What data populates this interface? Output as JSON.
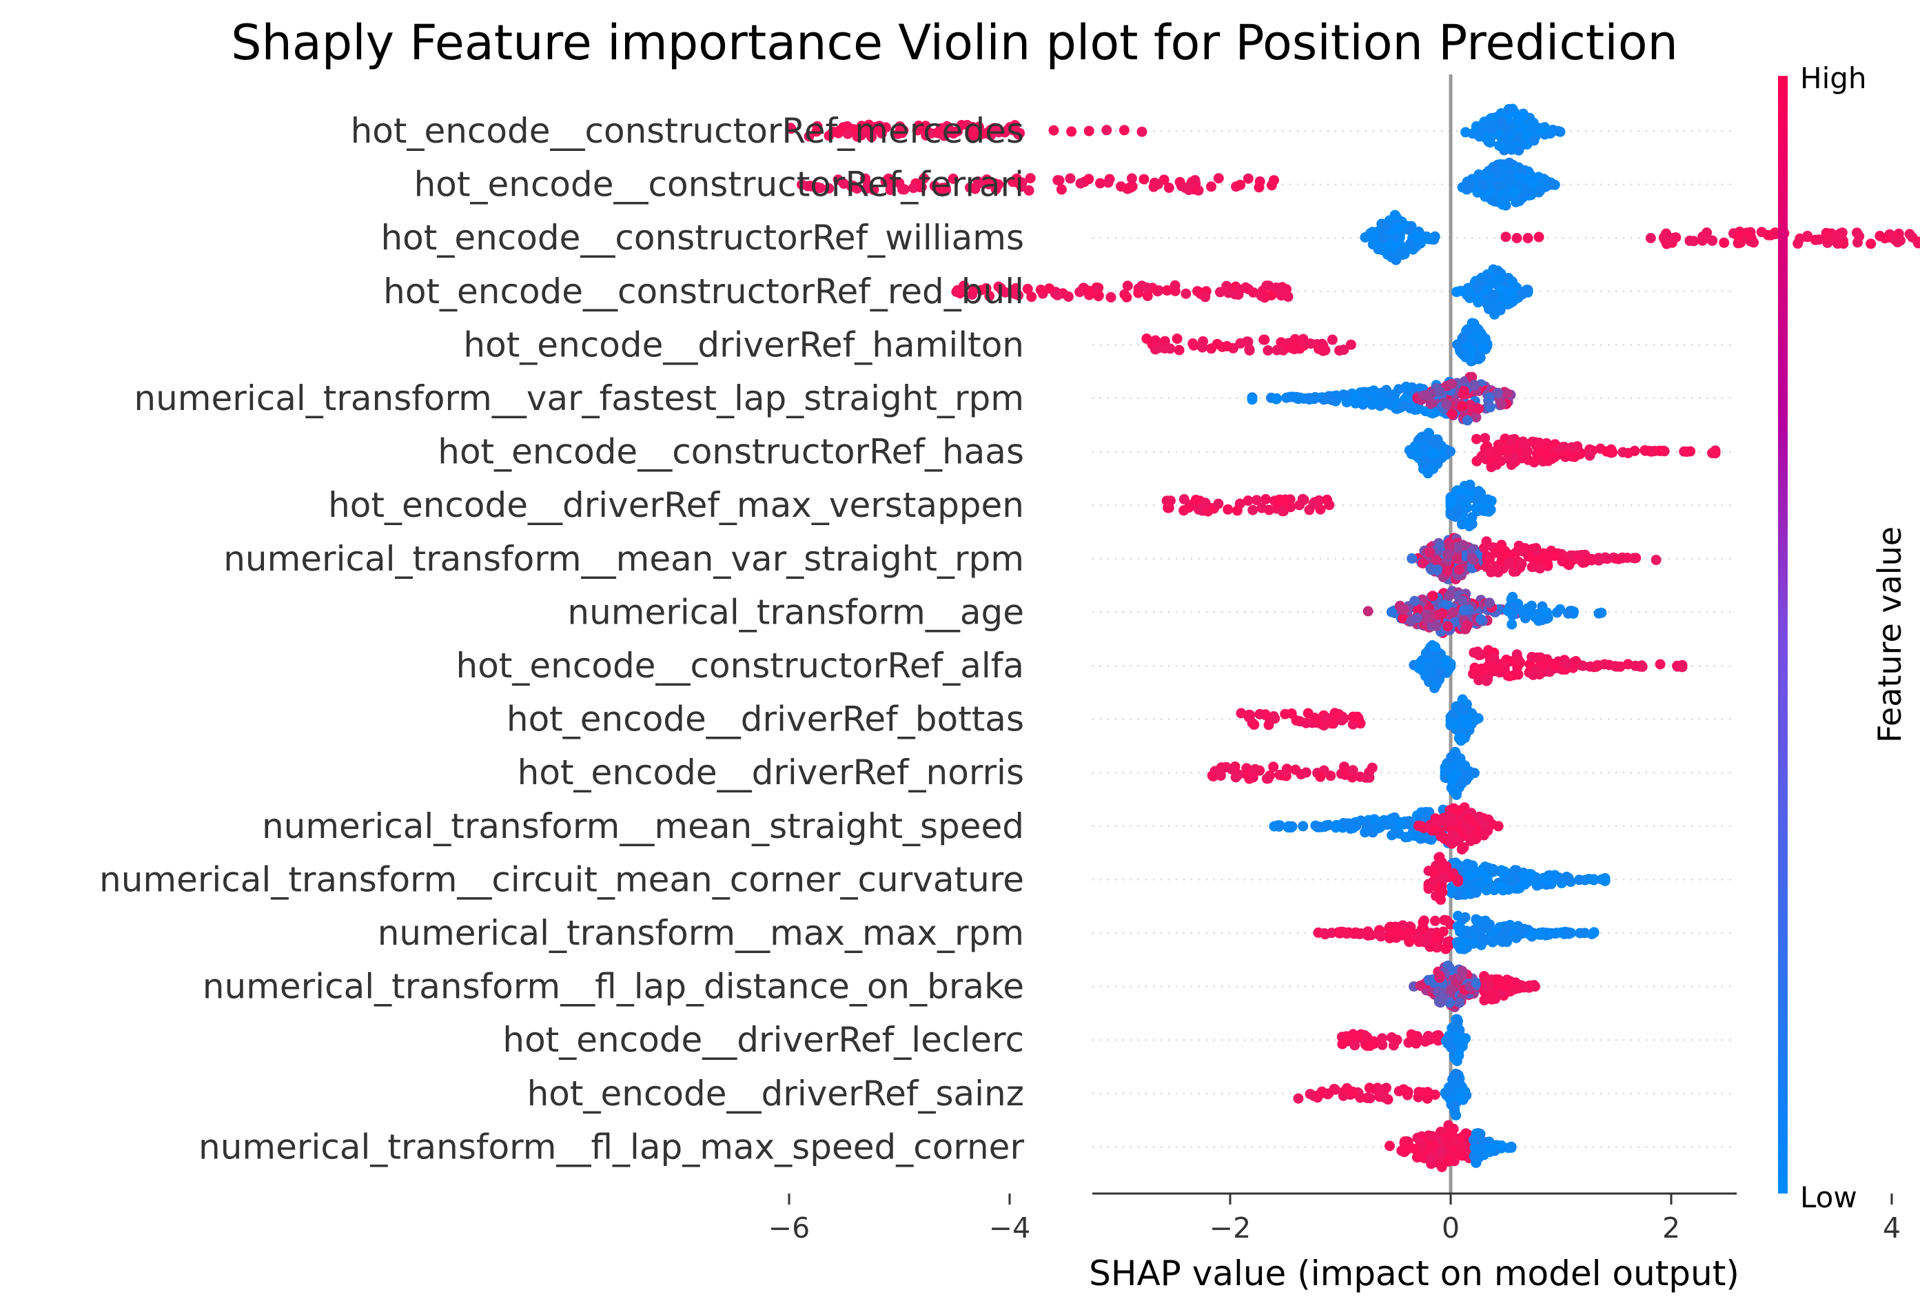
{
  "chart_data": {
    "type": "scatter",
    "subtype": "shap-beeswarm",
    "title": "Shaply Feature importance Violin plot for Position Prediction",
    "xlabel": "SHAP value (impact on model output)",
    "xlim": [
      -6.5,
      5.2
    ],
    "xticks": [
      -6,
      -4,
      -2,
      0,
      2,
      4
    ],
    "xtick_labels": [
      "−6",
      "−4",
      "−2",
      "0",
      "2",
      "4"
    ],
    "grid": false,
    "colorbar": {
      "label": "Feature value",
      "high_label": "High",
      "low_label": "Low",
      "high_color": "#ff0d57",
      "low_color": "#1e88e5"
    },
    "features": [
      {
        "name": "hot_encode__constructorRef_mercedes",
        "clusters": [
          {
            "range": [
              -6.0,
              -3.9
            ],
            "value": "high",
            "density": "even",
            "count": 80
          },
          {
            "range": [
              -3.6,
              -2.8
            ],
            "value": "high",
            "density": "sparse",
            "count": 6
          },
          {
            "range": [
              0.1,
              1.0
            ],
            "value": "low",
            "density": "peak",
            "count": 150,
            "center": 0.55
          }
        ]
      },
      {
        "name": "hot_encode__constructorRef_ferrari",
        "clusters": [
          {
            "range": [
              -5.9,
              -1.6
            ],
            "value": "high",
            "density": "even",
            "count": 95
          },
          {
            "range": [
              0.0,
              1.0
            ],
            "value": "low",
            "density": "peak",
            "count": 170,
            "center": 0.5
          }
        ]
      },
      {
        "name": "hot_encode__constructorRef_williams",
        "clusters": [
          {
            "range": [
              -0.8,
              -0.1
            ],
            "value": "low",
            "density": "peak",
            "count": 130,
            "center": -0.5
          },
          {
            "range": [
              0.5,
              0.8
            ],
            "value": "high",
            "density": "sparse",
            "count": 4
          },
          {
            "range": [
              1.8,
              4.6
            ],
            "value": "high",
            "density": "even",
            "count": 90
          }
        ]
      },
      {
        "name": "hot_encode__constructorRef_red_bull",
        "clusters": [
          {
            "range": [
              -4.6,
              -1.4
            ],
            "value": "high",
            "density": "even",
            "count": 80
          },
          {
            "range": [
              0.0,
              0.7
            ],
            "value": "low",
            "density": "peak",
            "count": 130,
            "center": 0.4
          }
        ]
      },
      {
        "name": "hot_encode__driverRef_hamilton",
        "clusters": [
          {
            "range": [
              -2.8,
              -0.9
            ],
            "value": "high",
            "density": "even",
            "count": 55
          },
          {
            "range": [
              0.0,
              0.35
            ],
            "value": "low",
            "density": "peak",
            "count": 90,
            "center": 0.2
          }
        ]
      },
      {
        "name": "numerical_transform__var_fastest_lap_straight_rpm",
        "clusters": [
          {
            "range": [
              -1.8,
              0.2
            ],
            "value": "low",
            "density": "left-tail",
            "count": 150,
            "center": 0.0
          },
          {
            "range": [
              -0.3,
              0.8
            ],
            "value": "mixed",
            "density": "peak",
            "count": 110,
            "center": 0.15
          }
        ]
      },
      {
        "name": "hot_encode__constructorRef_haas",
        "clusters": [
          {
            "range": [
              -0.4,
              0.0
            ],
            "value": "low",
            "density": "peak",
            "count": 110,
            "center": -0.2
          },
          {
            "range": [
              0.1,
              2.4
            ],
            "value": "high",
            "density": "right-tail",
            "count": 120,
            "center": 0.2
          }
        ]
      },
      {
        "name": "hot_encode__driverRef_max_verstappen",
        "clusters": [
          {
            "range": [
              -2.6,
              -1.1
            ],
            "value": "high",
            "density": "even",
            "count": 50
          },
          {
            "range": [
              0.0,
              0.6
            ],
            "value": "low",
            "density": "peak",
            "count": 80,
            "center": 0.15
          }
        ]
      },
      {
        "name": "numerical_transform__mean_var_straight_rpm",
        "clusters": [
          {
            "range": [
              -0.5,
              0.3
            ],
            "value": "mixed",
            "density": "peak",
            "count": 150,
            "center": 0.0
          },
          {
            "range": [
              0.2,
              2.1
            ],
            "value": "high",
            "density": "right-tail",
            "count": 110,
            "center": 0.3
          }
        ]
      },
      {
        "name": "numerical_transform__age",
        "clusters": [
          {
            "range": [
              -0.8,
              0.6
            ],
            "value": "mixed",
            "density": "peak",
            "count": 200,
            "center": 0.0
          },
          {
            "range": [
              0.4,
              1.4
            ],
            "value": "low",
            "density": "right-tail",
            "count": 40,
            "center": 0.5
          }
        ]
      },
      {
        "name": "hot_encode__constructorRef_alfa",
        "clusters": [
          {
            "range": [
              -0.35,
              0.0
            ],
            "value": "low",
            "density": "peak",
            "count": 100,
            "center": -0.15
          },
          {
            "range": [
              0.1,
              2.1
            ],
            "value": "high",
            "density": "right-tail",
            "count": 110,
            "center": 0.2
          }
        ]
      },
      {
        "name": "hot_encode__driverRef_bottas",
        "clusters": [
          {
            "range": [
              -1.9,
              -0.8
            ],
            "value": "high",
            "density": "even",
            "count": 45
          },
          {
            "range": [
              0.0,
              0.3
            ],
            "value": "low",
            "density": "peak",
            "count": 70,
            "center": 0.1
          }
        ]
      },
      {
        "name": "hot_encode__driverRef_norris",
        "clusters": [
          {
            "range": [
              -2.2,
              -0.7
            ],
            "value": "high",
            "density": "even",
            "count": 50
          },
          {
            "range": [
              -0.05,
              0.25
            ],
            "value": "low",
            "density": "peak",
            "count": 70,
            "center": 0.05
          }
        ]
      },
      {
        "name": "numerical_transform__mean_straight_speed",
        "clusters": [
          {
            "range": [
              -1.6,
              0.3
            ],
            "value": "low",
            "density": "left-tail",
            "count": 130,
            "center": 0.0
          },
          {
            "range": [
              -0.3,
              0.5
            ],
            "value": "high",
            "density": "peak",
            "count": 110,
            "center": 0.1
          }
        ]
      },
      {
        "name": "numerical_transform__circuit_mean_corner_curvature",
        "clusters": [
          {
            "range": [
              -0.7,
              1.4
            ],
            "value": "low",
            "density": "right-tail",
            "count": 180,
            "center": 0.0
          },
          {
            "range": [
              -0.2,
              0.2
            ],
            "value": "high",
            "density": "peak",
            "count": 30,
            "center": -0.1
          }
        ]
      },
      {
        "name": "numerical_transform__max_max_rpm",
        "clusters": [
          {
            "range": [
              -1.2,
              0.2
            ],
            "value": "high",
            "density": "left-tail",
            "count": 90,
            "center": 0.0
          },
          {
            "range": [
              -0.2,
              1.3
            ],
            "value": "low",
            "density": "right-tail",
            "count": 120,
            "center": 0.05
          }
        ]
      },
      {
        "name": "numerical_transform__fl_lap_distance_on_brake",
        "clusters": [
          {
            "range": [
              -0.4,
              0.3
            ],
            "value": "mixed",
            "density": "peak",
            "count": 120,
            "center": 0.0
          },
          {
            "range": [
              0.2,
              0.8
            ],
            "value": "high",
            "density": "right-tail",
            "count": 60,
            "center": 0.3
          }
        ]
      },
      {
        "name": "hot_encode__driverRef_leclerc",
        "clusters": [
          {
            "range": [
              -1.0,
              -0.1
            ],
            "value": "high",
            "density": "even",
            "count": 40
          },
          {
            "range": [
              -0.05,
              0.15
            ],
            "value": "low",
            "density": "peak",
            "count": 60,
            "center": 0.05
          }
        ]
      },
      {
        "name": "hot_encode__driverRef_sainz",
        "clusters": [
          {
            "range": [
              -1.4,
              -0.1
            ],
            "value": "high",
            "density": "even",
            "count": 45
          },
          {
            "range": [
              -0.05,
              0.15
            ],
            "value": "low",
            "density": "peak",
            "count": 60,
            "center": 0.05
          }
        ]
      },
      {
        "name": "numerical_transform__fl_lap_max_speed_corner",
        "clusters": [
          {
            "range": [
              -0.75,
              0.3
            ],
            "value": "high",
            "density": "peak",
            "count": 110,
            "center": -0.05
          },
          {
            "range": [
              0.1,
              0.55
            ],
            "value": "low",
            "density": "right-tail",
            "count": 30,
            "center": 0.2
          }
        ]
      }
    ]
  }
}
